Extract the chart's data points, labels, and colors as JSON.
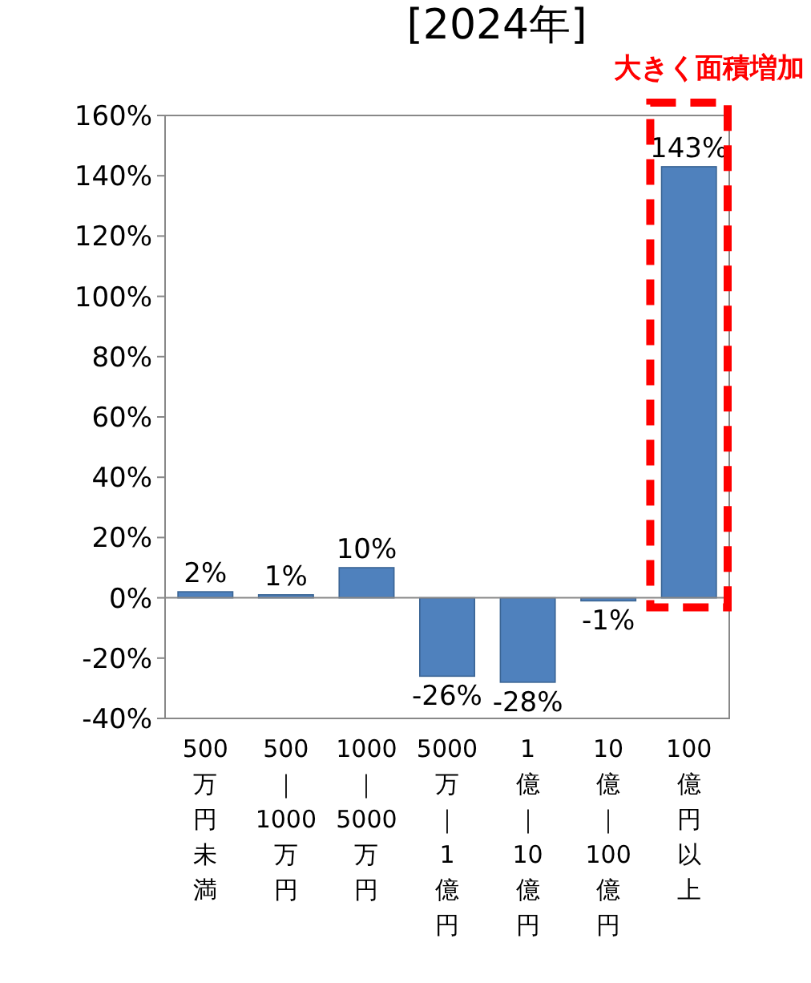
{
  "chart_data": {
    "type": "bar",
    "title": "[2024年]",
    "categories": [
      "500万円未満",
      "500｜1000万円",
      "1000｜5000万円",
      "5000万｜1億円",
      "1億｜10億円",
      "10億｜100億円",
      "100億円以上"
    ],
    "values": [
      2,
      1,
      10,
      -26,
      -28,
      -1,
      143
    ],
    "value_labels": [
      "2%",
      "1%",
      "10%",
      "-26%",
      "-28%",
      "-1%",
      "143%"
    ],
    "color": "#4f81bd",
    "ylim": [
      -40,
      160
    ],
    "yticks": [
      {
        "value": -40,
        "label": "-40%"
      },
      {
        "value": -20,
        "label": "-20%"
      },
      {
        "value": 0,
        "label": "0%"
      },
      {
        "value": 20,
        "label": "20%"
      },
      {
        "value": 40,
        "label": "40%"
      },
      {
        "value": 60,
        "label": "60%"
      },
      {
        "value": 80,
        "label": "80%"
      },
      {
        "value": 100,
        "label": "100%"
      },
      {
        "value": 120,
        "label": "120%"
      },
      {
        "value": 140,
        "label": "140%"
      },
      {
        "value": 160,
        "label": "160%"
      }
    ],
    "annotations": [
      "大きく面積増加"
    ]
  }
}
